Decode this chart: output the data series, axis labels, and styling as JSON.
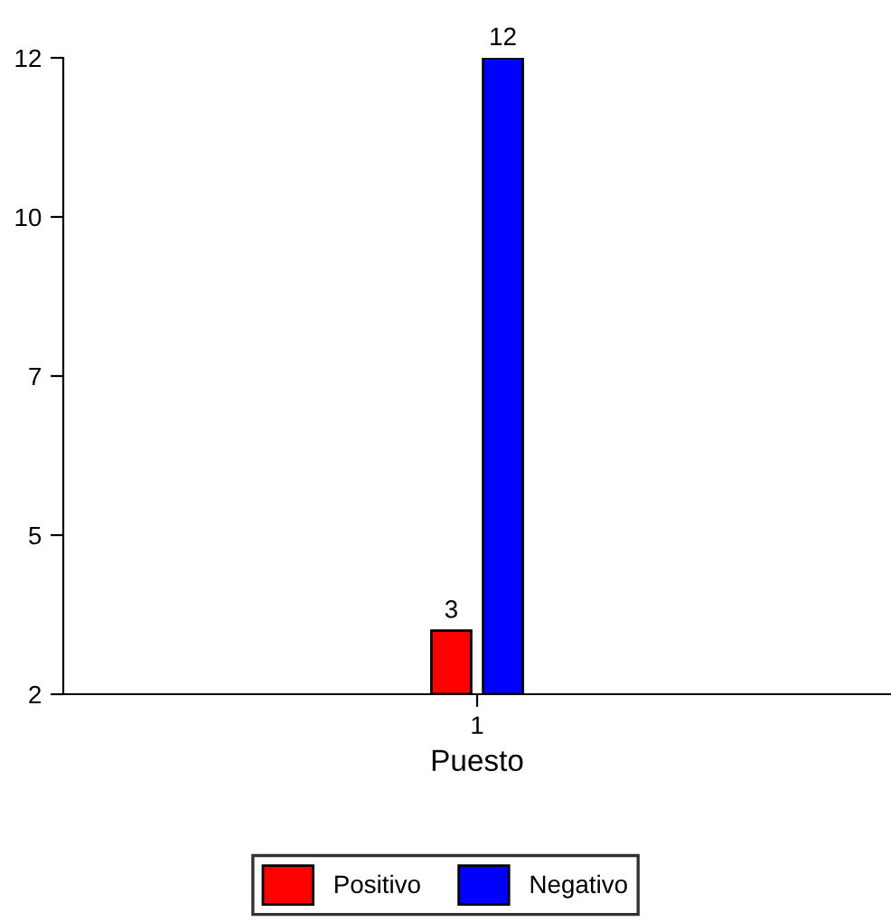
{
  "chart_data": {
    "type": "bar",
    "xlabel": "Puesto",
    "categories": [
      "1"
    ],
    "series": [
      {
        "name": "Positivo",
        "color": "#ff0000",
        "values": [
          3
        ]
      },
      {
        "name": "Negativo",
        "color": "#0000ff",
        "values": [
          12
        ]
      }
    ],
    "ylim": [
      2,
      12
    ],
    "yticks": [
      2,
      {
        "value": 4.5,
        "label": "5"
      },
      7,
      {
        "value": 9.5,
        "label": "10"
      },
      12
    ],
    "data_labels": true,
    "legend": "bottom",
    "grid": false
  }
}
